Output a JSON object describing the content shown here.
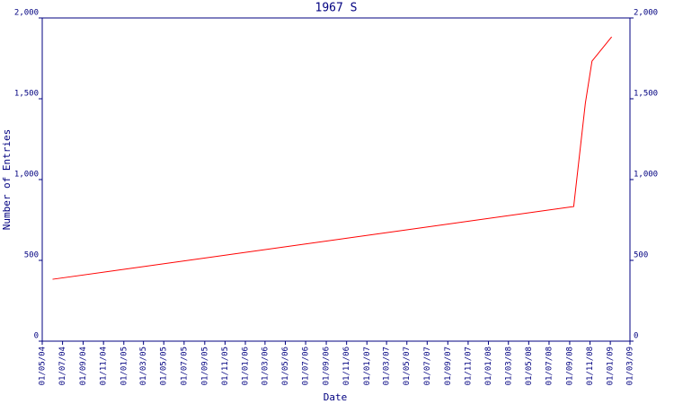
{
  "chart_data": {
    "type": "line",
    "title": "1967 S",
    "x_label": "Date",
    "y_label": "Number of Entries",
    "x": [
      "01/06/04",
      "13/09/08",
      "18/10/08",
      "07/11/08",
      "05/01/09"
    ],
    "series": [
      {
        "name": "1967 S",
        "color": "#ff0000",
        "values": [
          383,
          833,
          1472,
          1733,
          1883
        ]
      }
    ],
    "xlim": [
      "01/05/04",
      "01/03/09"
    ],
    "xticks": [
      "01/05/04",
      "01/07/04",
      "01/09/04",
      "01/11/04",
      "01/01/05",
      "01/03/05",
      "01/05/05",
      "01/07/05",
      "01/09/05",
      "01/11/05",
      "01/01/06",
      "01/03/06",
      "01/05/06",
      "01/07/06",
      "01/09/06",
      "01/11/06",
      "01/01/07",
      "01/03/07",
      "01/05/07",
      "01/07/07",
      "01/09/07",
      "01/11/07",
      "01/01/08",
      "01/03/08",
      "01/05/08",
      "01/07/08",
      "01/09/08",
      "01/11/08",
      "01/01/09",
      "01/03/09"
    ],
    "ylim": [
      0,
      2000
    ],
    "yticks": [
      0,
      500,
      {
        "value": 1000,
        "label": "1,000"
      },
      {
        "value": 1500,
        "label": "1,500"
      },
      {
        "value": 2000,
        "label": "2,000"
      }
    ],
    "axis_color": "#000080"
  }
}
